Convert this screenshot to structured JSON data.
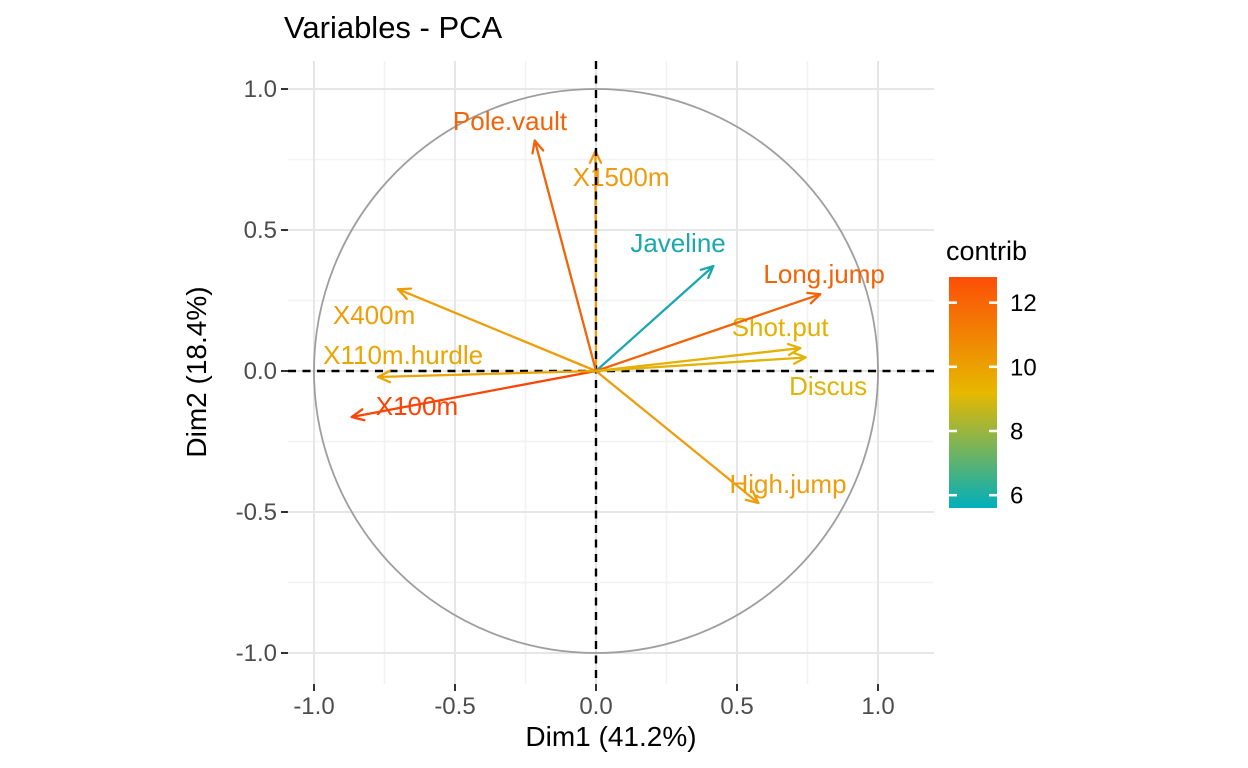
{
  "header": {
    "title": "Variables - PCA"
  },
  "axes": {
    "x_label": "Dim1 (41.2%)",
    "y_label": "Dim2 (18.4%)"
  },
  "legend": {
    "title": "contrib"
  },
  "chart_data": {
    "type": "scatter",
    "subtype": "pca-variables-correlation-circle",
    "title": "Variables - PCA",
    "xlabel": "Dim1 (41.2%)",
    "ylabel": "Dim2 (18.4%)",
    "xlim": [
      -1.09,
      1.2
    ],
    "ylim": [
      -1.11,
      1.1
    ],
    "x_ticks": [
      -1.0,
      -0.5,
      0.0,
      0.5,
      1.0
    ],
    "y_ticks": [
      -1.0,
      -0.5,
      0.0,
      0.5,
      1.0
    ],
    "x_tick_labels": [
      "-1.0",
      "-0.5",
      "0.0",
      "0.5",
      "1.0"
    ],
    "y_tick_labels": [
      "-1.0",
      "-0.5",
      "0.0",
      "0.5",
      "1.0"
    ],
    "minor_ticks": [
      -0.75,
      -0.25,
      0.25,
      0.75
    ],
    "grid": true,
    "unit_circle": true,
    "zero_reference_lines": "dashed",
    "variables": [
      {
        "name": "X100m",
        "x": -0.866,
        "y": -0.163,
        "contrib_est": 12.7,
        "color": "#FB4507",
        "label_at": [
          -0.635,
          -0.124
        ]
      },
      {
        "name": "X110m.hurdle",
        "x": -0.773,
        "y": -0.021,
        "contrib_est": 9.9,
        "color": "#EBA402",
        "label_at": [
          -0.684,
          0.057
        ]
      },
      {
        "name": "X400m",
        "x": -0.702,
        "y": 0.29,
        "contrib_est": 10.3,
        "color": "#EE9D08",
        "label_at": [
          -0.787,
          0.199
        ]
      },
      {
        "name": "Pole.vault",
        "x": -0.217,
        "y": 0.817,
        "contrib_est": 11.6,
        "color": "#F16408",
        "label_at": [
          -0.305,
          0.887
        ]
      },
      {
        "name": "X1500m",
        "x": -0.002,
        "y": 0.78,
        "contrib_est": 10.4,
        "color": "#F29A0F",
        "label_at": [
          0.089,
          0.688
        ]
      },
      {
        "name": "Javeline",
        "x": 0.416,
        "y": 0.372,
        "contrib_est": 5.7,
        "color": "#1BA7AE",
        "label_at": [
          0.291,
          0.454
        ]
      },
      {
        "name": "Long.jump",
        "x": 0.795,
        "y": 0.272,
        "contrib_est": 11.7,
        "color": "#F26206",
        "label_at": [
          0.809,
          0.344
        ]
      },
      {
        "name": "Shot.put",
        "x": 0.724,
        "y": 0.081,
        "contrib_est": 9.4,
        "color": "#E5B000",
        "label_at": [
          0.653,
          0.156
        ]
      },
      {
        "name": "Discus",
        "x": 0.743,
        "y": 0.048,
        "contrib_est": 9.3,
        "color": "#E2B204",
        "label_at": [
          0.823,
          -0.053
        ]
      },
      {
        "name": "High.jump",
        "x": 0.576,
        "y": -0.468,
        "contrib_est": 10.2,
        "color": "#EE9D0C",
        "label_at": [
          0.681,
          -0.401
        ]
      }
    ],
    "colorbar": {
      "title": "contrib",
      "tick_values": [
        12,
        10,
        8,
        6
      ],
      "scale_range_estimate": [
        5.6,
        12.8
      ],
      "gradient_low_mid_high": [
        "#00AFBB",
        "#E7B800",
        "#FC4E07"
      ],
      "position": "right"
    }
  }
}
